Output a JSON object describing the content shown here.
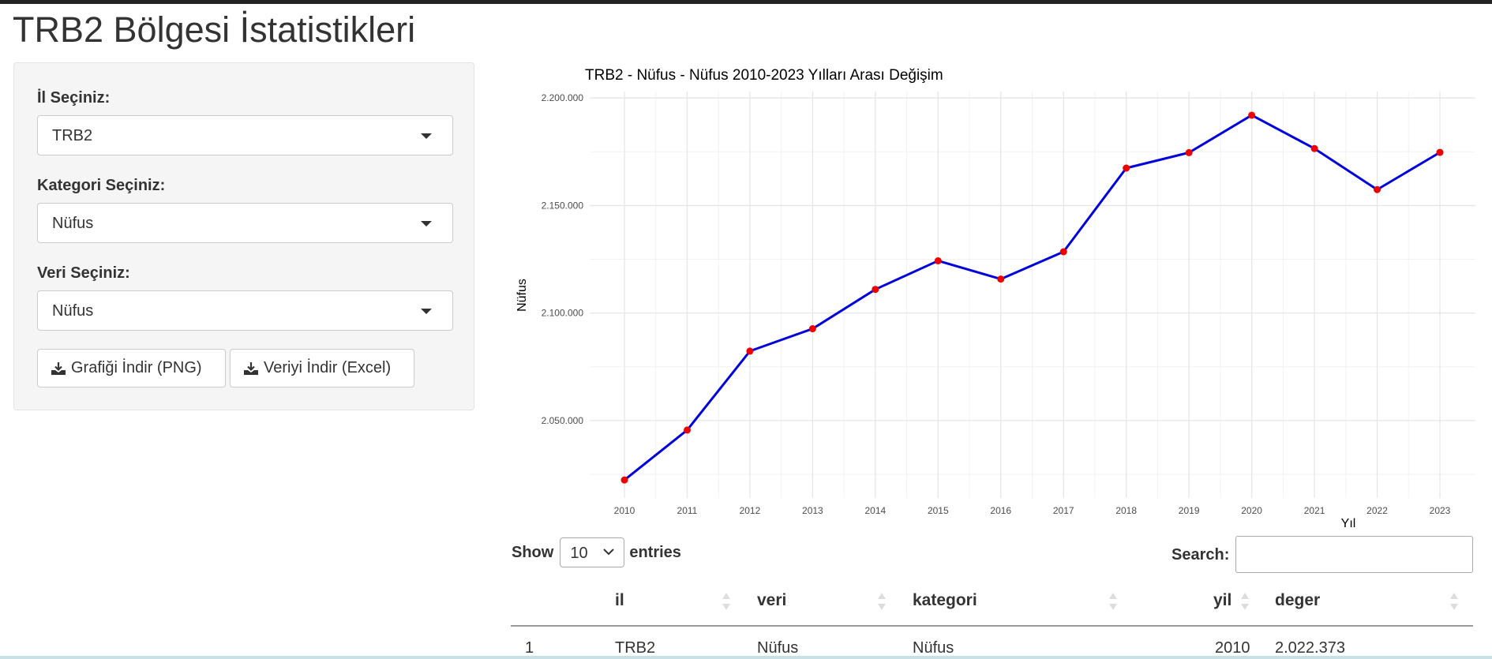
{
  "page": {
    "title": "TRB2 Bölgesi İstatistikleri"
  },
  "sidebar": {
    "il_label": "İl Seçiniz:",
    "il_value": "TRB2",
    "kategori_label": "Kategori Seçiniz:",
    "kategori_value": "Nüfus",
    "veri_label": "Veri Seçiniz:",
    "veri_value": "Nüfus",
    "download_png_label": "Grafiği İndir (PNG)",
    "download_excel_label": "Veriyi İndir (Excel)"
  },
  "chart_data": {
    "type": "line",
    "title": "TRB2 - Nüfus - Nüfus 2010-2023 Yılları Arası Değişim",
    "xlabel": "Yıl",
    "ylabel": "Nüfus",
    "x": [
      "2010",
      "2011",
      "2012",
      "2013",
      "2014",
      "2015",
      "2016",
      "2017",
      "2018",
      "2019",
      "2020",
      "2021",
      "2022",
      "2023"
    ],
    "values": [
      2022373,
      2045600,
      2082300,
      2092700,
      2111000,
      2124300,
      2115800,
      2128500,
      2167400,
      2174600,
      2192000,
      2176500,
      2157400,
      2174700
    ],
    "ylim": [
      2014000,
      2203000
    ],
    "yticks": [
      2050000,
      2100000,
      2150000,
      2200000
    ],
    "ytick_labels": [
      "2.050.000",
      "2.100.000",
      "2.150.000",
      "2.200.000"
    ],
    "line_color": "#0000dd",
    "point_color": "#ee0000",
    "grid": true
  },
  "table": {
    "show_label": "Show",
    "entries_label": "entries",
    "page_length": "10",
    "search_label": "Search:",
    "search_value": "",
    "columns": [
      "il",
      "veri",
      "kategori",
      "yil",
      "deger"
    ],
    "rows": [
      {
        "index": "1",
        "il": "TRB2",
        "veri": "Nüfus",
        "kategori": "Nüfus",
        "yil": "2010",
        "deger": "2.022.373"
      }
    ]
  }
}
